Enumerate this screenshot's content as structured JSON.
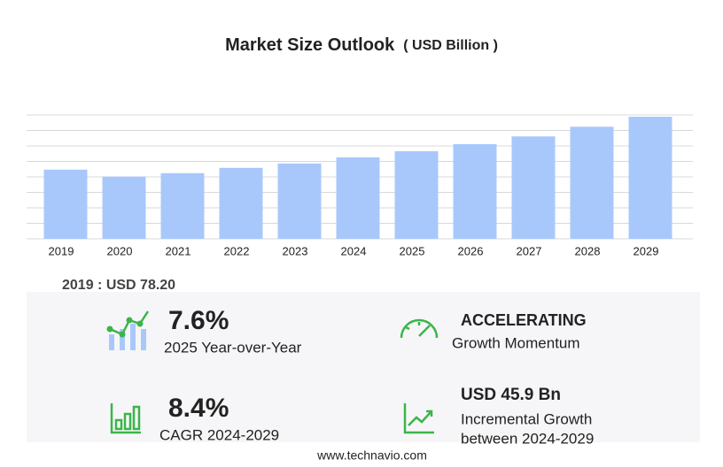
{
  "chart_data": {
    "type": "bar",
    "title": "Market Size Outlook",
    "unit_label": "( USD Billion )",
    "categories": [
      "2019",
      "2020",
      "2021",
      "2022",
      "2023",
      "2024",
      "2025",
      "2026",
      "2027",
      "2028",
      "2029"
    ],
    "values": [
      78.2,
      70.3,
      74.2,
      80.2,
      85.1,
      92.1,
      99.0,
      107.0,
      115.8,
      126.7,
      138.0
    ],
    "color": "#a8c8fc",
    "ylim": [
      0,
      140
    ],
    "yticks": [
      0,
      17.5,
      35,
      52.5,
      70,
      87.5,
      105,
      122.5,
      140
    ],
    "grid": true
  },
  "summary": {
    "base": "2019 : USD  78.20",
    "yoy_value": "7.6%",
    "yoy_label": "2025 Year-over-Year",
    "momentum_value": "ACCELERATING",
    "momentum_label": "Growth Momentum",
    "cagr_value": "8.4%",
    "cagr_label": "CAGR 2024-2029",
    "incremental_value": "USD 45.9 Bn",
    "incremental_label_1": "Incremental Growth",
    "incremental_label_2": "between 2024-2029"
  },
  "footer": "www.technavio.com"
}
